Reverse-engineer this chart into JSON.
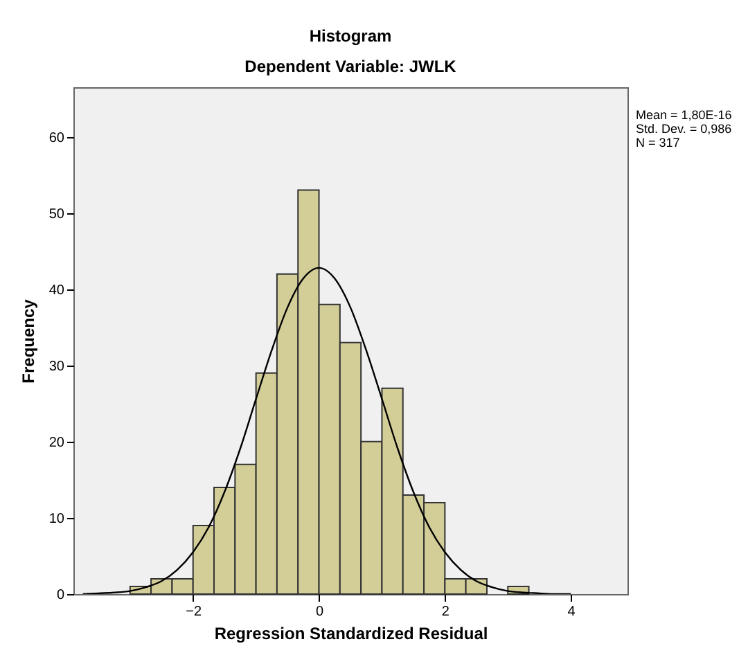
{
  "chart_data": {
    "type": "histogram",
    "title": "Histogram",
    "subtitle": "Dependent Variable: JWLK",
    "xlabel": "Regression Standardized Residual",
    "ylabel": "Frequency",
    "bins": [
      -3,
      -2.667,
      -2.333,
      -2,
      -1.667,
      -1.333,
      -1,
      -0.667,
      -0.333,
      0,
      0.333,
      0.667,
      1,
      1.333,
      1.667,
      2,
      2.333,
      2.667,
      3,
      3.333
    ],
    "values": [
      1,
      2,
      2,
      9,
      14,
      17,
      29,
      42,
      53,
      38,
      33,
      20,
      27,
      13,
      12,
      2,
      2,
      0,
      1
    ],
    "color": "#d3ce98",
    "series": [
      {
        "type": "line",
        "color": "#000000",
        "x": [
          -3.75,
          -3.5,
          -3.25,
          -3,
          -2.75,
          -2.5,
          -2.25,
          -2,
          -1.75,
          -1.5,
          -1.25,
          -1,
          -0.75,
          -0.5,
          -0.25,
          0,
          0.25,
          0.5,
          0.75,
          1,
          1.25,
          1.5,
          1.75,
          2,
          2.25,
          2.5,
          2.75,
          3,
          3.25,
          3.5,
          3.75,
          4
        ],
        "values": [
          0,
          0.1,
          0.2,
          0.4,
          0.9,
          1.7,
          3.2,
          5.5,
          8.8,
          13.4,
          19.1,
          25.6,
          32,
          37.6,
          41.4,
          42.8,
          41.4,
          37.6,
          32,
          25.6,
          19.1,
          13.4,
          8.8,
          5.5,
          3.2,
          1.7,
          0.9,
          0.4,
          0.2,
          0.1,
          0,
          0
        ]
      }
    ],
    "xlim": [
      -3.9,
      4.9
    ],
    "xticks": [
      -2,
      0,
      2,
      4
    ],
    "ylim": [
      0,
      66.5
    ],
    "yticks": [
      0,
      10,
      20,
      30,
      40,
      50,
      60
    ],
    "annotations": [
      "Mean = 1,80E-16",
      "Std. Dev. = 0,986",
      "N = 317"
    ]
  }
}
